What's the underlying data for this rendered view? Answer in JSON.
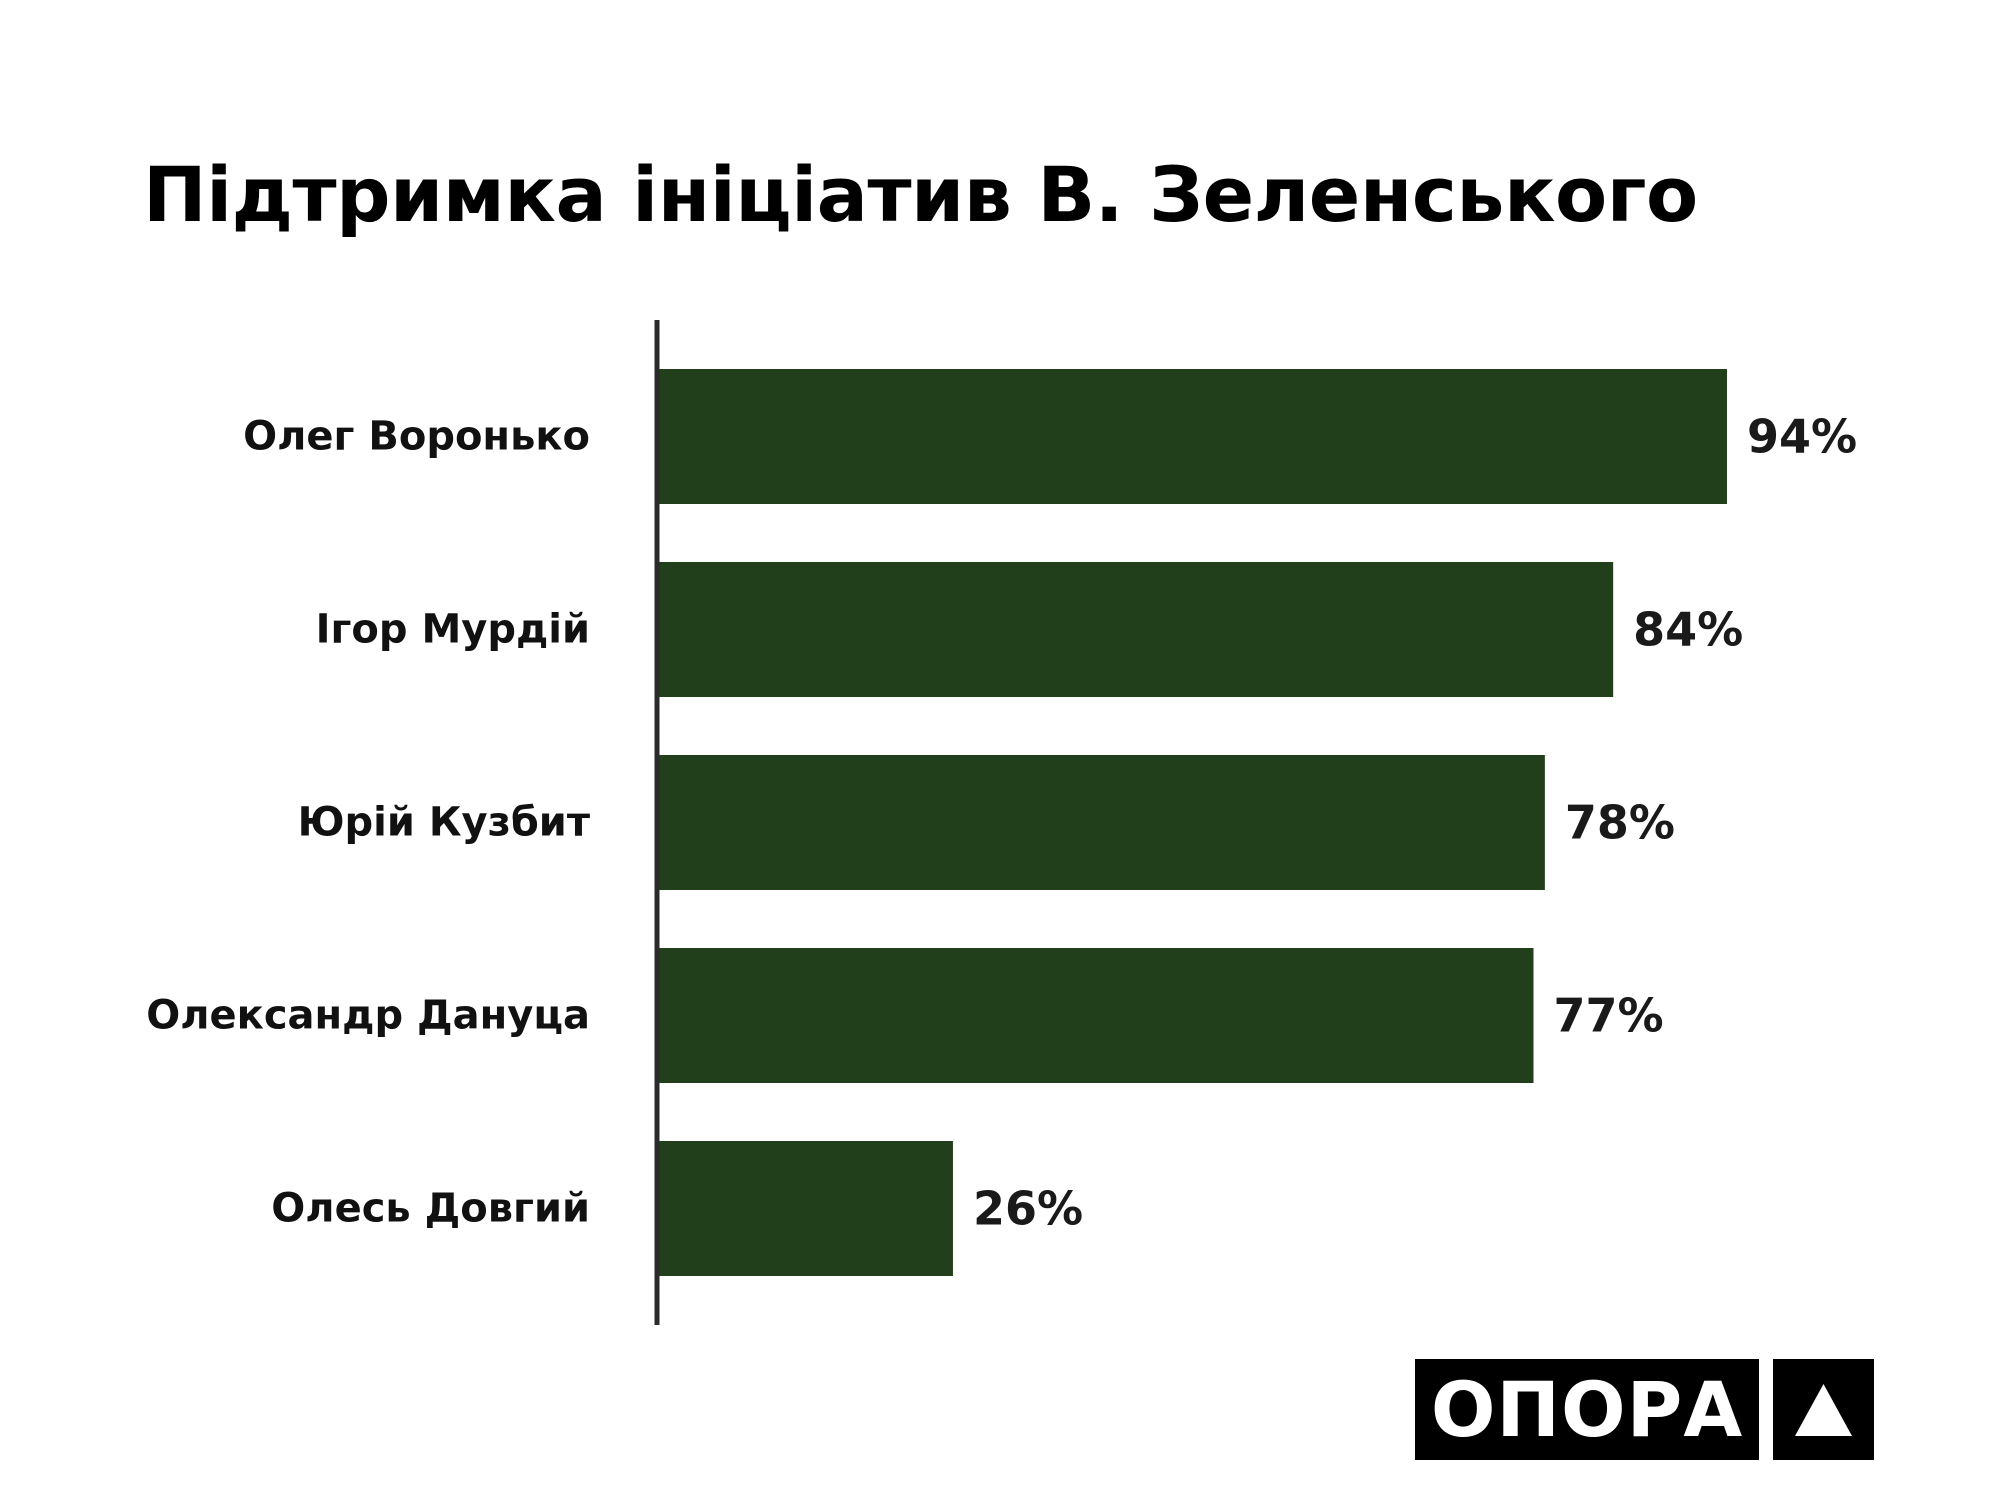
{
  "chart_data": {
    "type": "bar",
    "orientation": "horizontal",
    "title": "Підтримка ініціатив В. Зеленського",
    "categories": [
      "Олег Воронько",
      "Ігор Мурдій",
      "Юрій Кузбит",
      "Олександр Дануца",
      "Олесь Довгий"
    ],
    "values": [
      94,
      84,
      78,
      77,
      26
    ],
    "value_labels": [
      "94%",
      "84%",
      "78%",
      "77%",
      "26%"
    ],
    "xlim": [
      0,
      100
    ],
    "grid": false,
    "legend": "none",
    "bar_color": "#213f1b"
  },
  "logo": {
    "text": "ОПОРА"
  }
}
